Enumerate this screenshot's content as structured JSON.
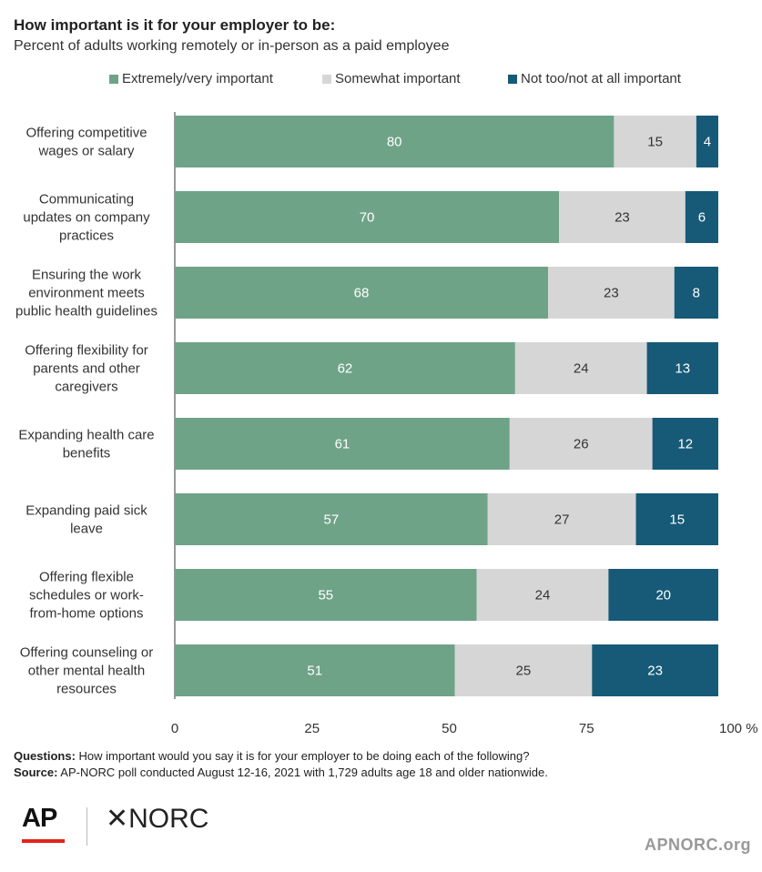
{
  "header": {
    "title": "How important is it for your employer to be:",
    "subtitle": "Percent of adults working remotely or in-person as a paid employee"
  },
  "chart_data": {
    "type": "bar",
    "orientation": "horizontal",
    "stacked": true,
    "categories": [
      [
        "Offering competitive",
        "wages or salary"
      ],
      [
        "Communicating",
        "updates on company",
        "practices"
      ],
      [
        "Ensuring the work",
        "environment meets",
        "public health guidelines"
      ],
      [
        "Offering flexibility for",
        "parents and other",
        "caregivers"
      ],
      [
        "Expanding health care",
        "benefits"
      ],
      [
        "Expanding paid sick",
        "leave"
      ],
      [
        "Offering flexible",
        "schedules or work-",
        "from-home options"
      ],
      [
        "Offering counseling or",
        "other mental health",
        "resources"
      ]
    ],
    "series": [
      {
        "name": "Extremely/very important",
        "color": "#6fa387",
        "values": [
          80,
          70,
          68,
          62,
          61,
          57,
          55,
          51
        ]
      },
      {
        "name": "Somewhat important",
        "color": "#d6d6d6",
        "values": [
          15,
          23,
          23,
          24,
          26,
          27,
          24,
          25
        ]
      },
      {
        "name": "Not too/not at all important",
        "color": "#165a77",
        "values": [
          4,
          6,
          8,
          13,
          12,
          15,
          20,
          23
        ]
      }
    ],
    "xlim": [
      0,
      100
    ],
    "xticks": [
      "0",
      "25",
      "50",
      "75",
      "100 %"
    ],
    "legend_position": "top",
    "grid": false
  },
  "notes": {
    "questions_label": "Questions:",
    "questions_text": " How important would you say it is for your employer to be doing each of the following?",
    "source_label": "Source:",
    "source_text": " AP-NORC poll conducted August 12-16, 2021 with 1,729 adults age 18 and older nationwide."
  },
  "branding": {
    "ap_logo": "AP",
    "norc_logo": "✕NORC",
    "site": "APNORC.org"
  }
}
